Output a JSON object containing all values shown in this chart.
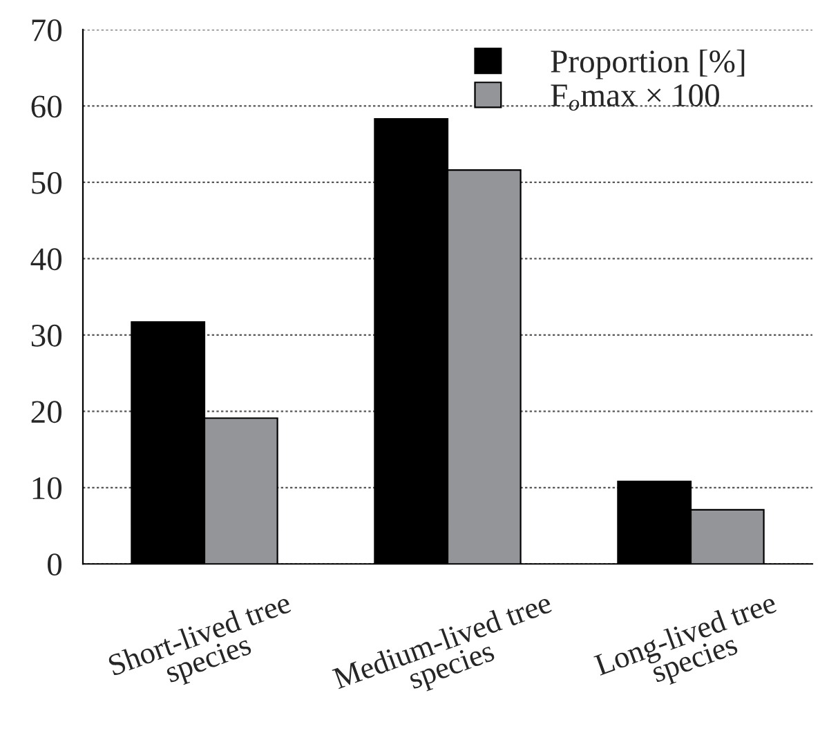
{
  "chart_data": {
    "type": "bar",
    "categories": [
      "Short-lived tree\nspecies",
      "Medium-lived tree\nspecies",
      "Long-lived tree\nspecies"
    ],
    "series": [
      {
        "name": "Proportion [%]",
        "color": "#000000",
        "values": [
          31.7,
          58.3,
          10.8
        ]
      },
      {
        "name": "F$_{o}$max × 100",
        "color": "#939598",
        "values": [
          19.1,
          51.6,
          7.1
        ]
      }
    ],
    "ylim": [
      0,
      70
    ],
    "yticks": [
      0,
      10,
      20,
      30,
      40,
      50,
      60,
      70
    ],
    "grid": "y",
    "legend": "top right"
  }
}
